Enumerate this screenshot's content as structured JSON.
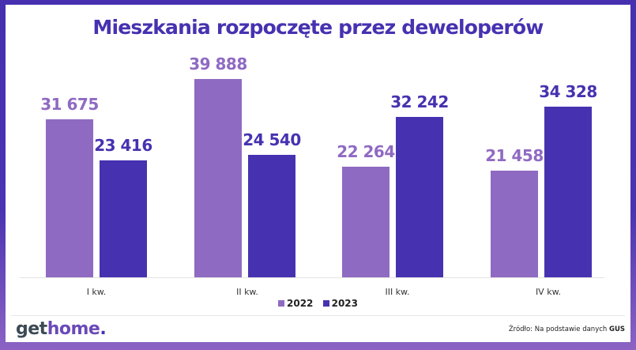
{
  "title": "Mieszkania rozpoczęte przez deweloperów",
  "colors": {
    "series_2022": "#8f6ac2",
    "series_2023": "#4632b1",
    "frame": "#4630b0"
  },
  "chart_data": {
    "type": "bar",
    "title": "Mieszkania rozpoczęte przez deweloperów",
    "categories": [
      "I kw.",
      "II kw.",
      "III kw.",
      "IV kw."
    ],
    "series": [
      {
        "name": "2022",
        "values": [
          31675,
          39888,
          22264,
          21458
        ],
        "labels": [
          "31 675",
          "39 888",
          "22 264",
          "21 458"
        ]
      },
      {
        "name": "2023",
        "values": [
          23416,
          24540,
          32242,
          34328
        ],
        "labels": [
          "23 416",
          "24 540",
          "32 242",
          "34 328"
        ]
      }
    ],
    "xlabel": "",
    "ylabel": "",
    "ylim": [
      0,
      40000
    ],
    "grid": false,
    "legend_position": "bottom"
  },
  "legend": [
    "2022",
    "2023"
  ],
  "footer": {
    "logo_get": "get",
    "logo_home": "home",
    "logo_dot": ".",
    "source_prefix": "Źródło: Na podstawie danych ",
    "source_bold": "GUS"
  }
}
